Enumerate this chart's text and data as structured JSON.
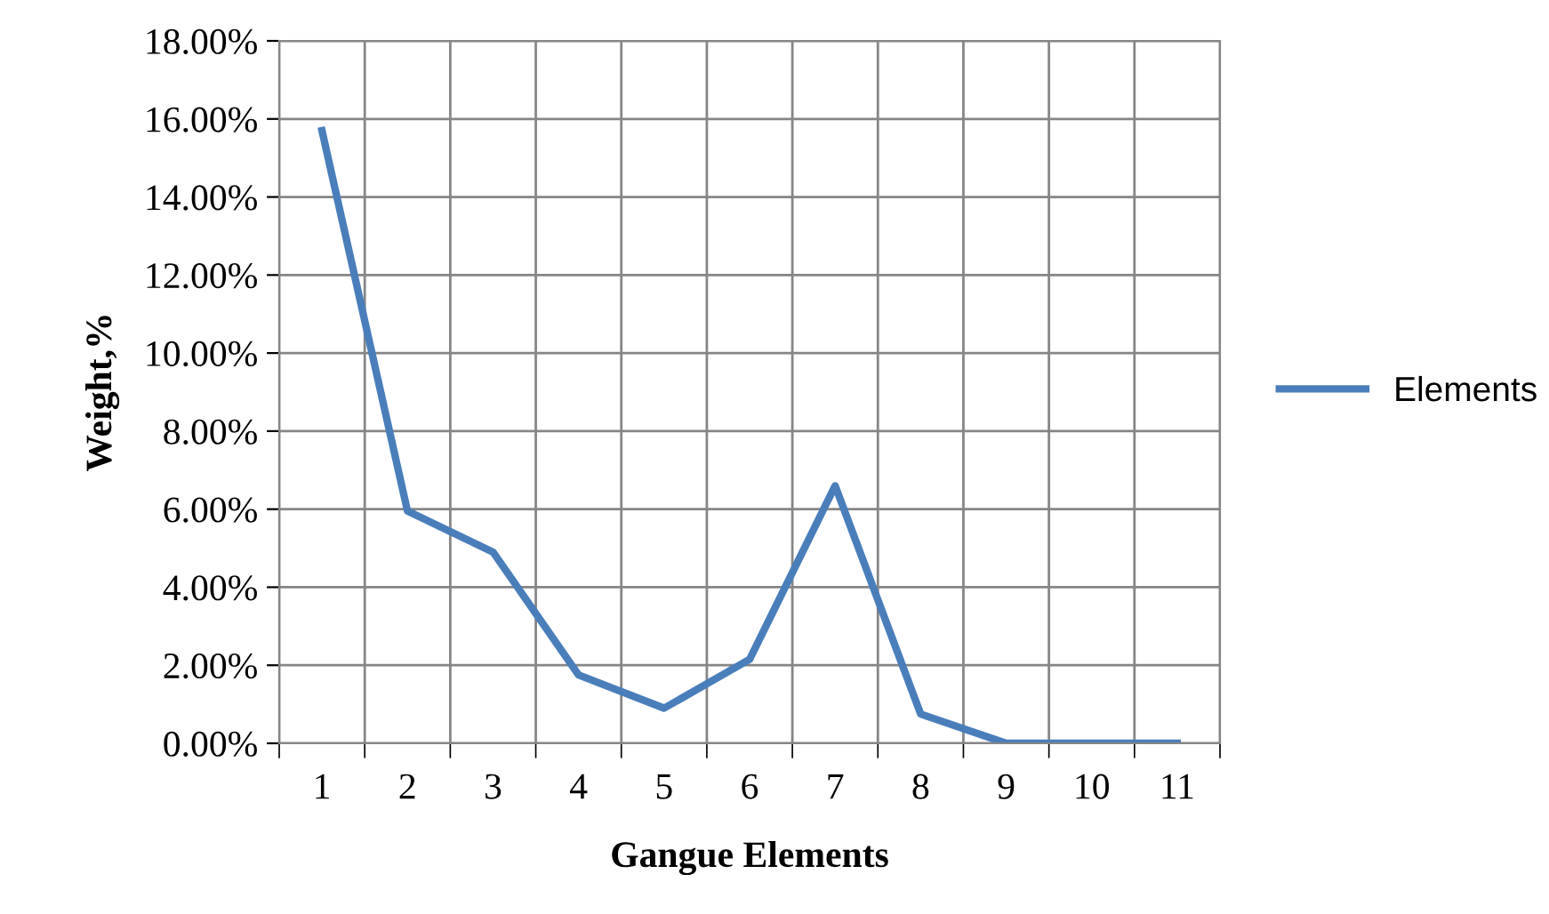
{
  "chart_data": {
    "type": "line",
    "xlabel": "Gangue Elements",
    "ylabel": "Weight,%",
    "categories": [
      "1",
      "2",
      "3",
      "4",
      "5",
      "6",
      "7",
      "8",
      "9",
      "10",
      "11"
    ],
    "series": [
      {
        "name": "Elements",
        "color": "#4a7ebb",
        "values": [
          15.7,
          5.95,
          4.9,
          1.75,
          0.9,
          2.15,
          6.6,
          0.75,
          0,
          0,
          0
        ]
      }
    ],
    "ylim": [
      0,
      18
    ],
    "yticks": [
      {
        "value": 0,
        "label": "0.00%"
      },
      {
        "value": 2,
        "label": "2.00%"
      },
      {
        "value": 4,
        "label": "4.00%"
      },
      {
        "value": 6,
        "label": "6.00%"
      },
      {
        "value": 8,
        "label": "8.00%"
      },
      {
        "value": 10,
        "label": "10.00%"
      },
      {
        "value": 12,
        "label": "12.00%"
      },
      {
        "value": 14,
        "label": "14.00%"
      },
      {
        "value": 16,
        "label": "16.00%"
      },
      {
        "value": 18,
        "label": "18.00%"
      }
    ],
    "grid": true,
    "legend": "right",
    "marker": "none",
    "line_style": "solid"
  }
}
